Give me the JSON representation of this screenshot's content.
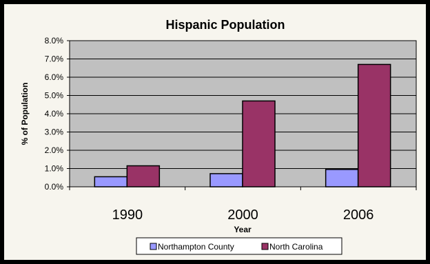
{
  "chart_data": {
    "type": "bar",
    "title": "Hispanic Population",
    "xlabel": "Year",
    "ylabel": "% of Population",
    "categories": [
      "1990",
      "2000",
      "2006"
    ],
    "series": [
      {
        "name": "Northampton County",
        "values": [
          0.55,
          0.72,
          0.95
        ],
        "color": "#9999ff"
      },
      {
        "name": "North Carolina",
        "values": [
          1.15,
          4.7,
          6.7
        ],
        "color": "#993366"
      }
    ],
    "ylim": [
      0,
      8
    ],
    "yticks": [
      "0.0%",
      "1.0%",
      "2.0%",
      "3.0%",
      "4.0%",
      "5.0%",
      "6.0%",
      "7.0%",
      "8.0%"
    ],
    "grid": true,
    "legend": "bottom",
    "plot_background": "#c0c0c0",
    "frame_color": "#000000"
  }
}
